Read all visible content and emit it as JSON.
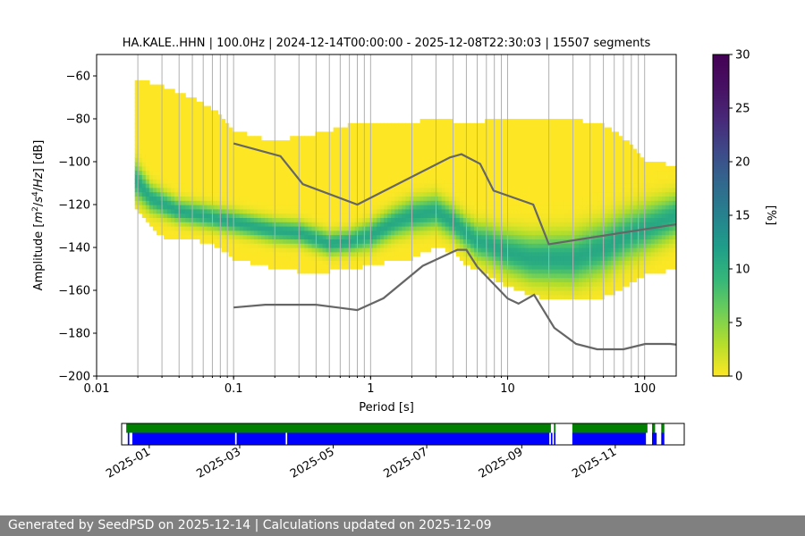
{
  "chart_data": [
    {
      "type": "heatmap",
      "title": "HA.KALE..HHN | 100.0Hz | 2024-12-14T00:00:00 - 2025-12-08T22:30:03 | 15507 segments",
      "xlabel": "Period [s]",
      "ylabel_parts": [
        "Amplitude [",
        "m",
        "2",
        "/",
        "s",
        "4",
        "/",
        "Hz",
        "] [dB]"
      ],
      "x_scale": "log",
      "xlim": [
        0.01,
        170
      ],
      "ylim": [
        -200,
        -50
      ],
      "x_ticks": [
        {
          "value": 0.01,
          "label": "0.01"
        },
        {
          "value": 0.1,
          "label": "0.1"
        },
        {
          "value": 1,
          "label": "1"
        },
        {
          "value": 10,
          "label": "10"
        },
        {
          "value": 100,
          "label": "100"
        }
      ],
      "y_ticks": [
        {
          "value": -60,
          "label": "−60"
        },
        {
          "value": -80,
          "label": "−80"
        },
        {
          "value": -100,
          "label": "−100"
        },
        {
          "value": -120,
          "label": "−120"
        },
        {
          "value": -140,
          "label": "−140"
        },
        {
          "value": -160,
          "label": "−160"
        },
        {
          "value": -180,
          "label": "−180"
        },
        {
          "value": -200,
          "label": "−200"
        }
      ],
      "grid_periods": [
        0.02,
        0.03,
        0.04,
        0.05,
        0.06,
        0.07,
        0.08,
        0.09,
        0.1,
        0.2,
        0.3,
        0.4,
        0.5,
        0.6,
        0.7,
        0.8,
        0.9,
        1,
        2,
        3,
        4,
        5,
        6,
        7,
        8,
        9,
        10,
        20,
        30,
        40,
        50,
        60,
        70,
        80,
        90,
        100
      ],
      "density_envelope": {
        "period": [
          0.019,
          0.03,
          0.05,
          0.08,
          0.1,
          0.2,
          0.3,
          0.5,
          0.8,
          1,
          2,
          3,
          4,
          5,
          7,
          10,
          15,
          20,
          30,
          50,
          70,
          100,
          170
        ],
        "upper_db": [
          -62,
          -66,
          -71,
          -79,
          -86,
          -92,
          -89,
          -87,
          -82,
          -83,
          -83,
          -80,
          -82,
          -82,
          -82,
          -80,
          -80,
          -80,
          -81,
          -84,
          -90,
          -100,
          -103
        ],
        "lower_db": [
          -123,
          -136,
          -137,
          -141,
          -146,
          -151,
          -152,
          -152,
          -151,
          -149,
          -146,
          -141,
          -143,
          -149,
          -153,
          -159,
          -163,
          -166,
          -165,
          -164,
          -160,
          -154,
          -151
        ]
      },
      "mode_curve": {
        "period": [
          0.019,
          0.025,
          0.04,
          0.06,
          0.1,
          0.2,
          0.3,
          0.5,
          0.7,
          1,
          1.5,
          2,
          3,
          4,
          5,
          6,
          7,
          10,
          15,
          20,
          30,
          50,
          70,
          100,
          170
        ],
        "db": [
          -108,
          -117,
          -123,
          -125,
          -128,
          -132,
          -133,
          -138,
          -137,
          -134,
          -128,
          -125,
          -123,
          -128,
          -133,
          -137,
          -138,
          -142,
          -145,
          -145,
          -145,
          -140,
          -135,
          -131,
          -125
        ],
        "width_db": [
          16,
          12,
          10,
          10,
          10,
          10,
          10,
          10,
          10,
          12,
          13,
          14,
          14,
          14,
          14,
          15,
          16,
          18,
          20,
          21,
          22,
          22,
          21,
          20,
          18
        ]
      },
      "nhnm": {
        "period": [
          0.1,
          0.22,
          0.32,
          0.8,
          3.8,
          4.6,
          6.3,
          7.9,
          15.4,
          20,
          354.8
        ],
        "db": [
          -91.5,
          -97.4,
          -110.5,
          -120,
          -98,
          -96.5,
          -101,
          -113.5,
          -120,
          -138.5,
          -126
        ]
      },
      "nlnm": {
        "period": [
          0.1,
          0.17,
          0.4,
          0.8,
          1.24,
          2.4,
          4.3,
          5,
          6,
          10,
          12,
          15.6,
          21.9,
          31.6,
          45,
          70,
          101,
          154,
          328
        ],
        "db": [
          -168,
          -166.7,
          -166.7,
          -169.2,
          -163.7,
          -148.6,
          -141.1,
          -141.1,
          -149,
          -163.8,
          -166.2,
          -162.1,
          -177.5,
          -185,
          -187.5,
          -187.5,
          -185,
          -185,
          -187.5
        ]
      },
      "colorbar": {
        "label": "[%]",
        "min": 0,
        "max": 30,
        "ticks": [
          {
            "value": 0,
            "label": "0"
          },
          {
            "value": 5,
            "label": "5"
          },
          {
            "value": 10,
            "label": "10"
          },
          {
            "value": 15,
            "label": "15"
          },
          {
            "value": 20,
            "label": "20"
          },
          {
            "value": 25,
            "label": "25"
          },
          {
            "value": 30,
            "label": "30"
          }
        ],
        "colormap": "viridis_r"
      },
      "colors": {
        "noise_models": "#666666",
        "grid": "#b0b0b0"
      }
    },
    {
      "type": "timeline",
      "date_range": [
        "2024-12-14",
        "2025-12-16"
      ],
      "x_ticks": [
        {
          "value": "2025-01-01",
          "label": "2025-01"
        },
        {
          "value": "2025-03-01",
          "label": "2025-03"
        },
        {
          "value": "2025-05-01",
          "label": "2025-05"
        },
        {
          "value": "2025-07-01",
          "label": "2025-07"
        },
        {
          "value": "2025-09-01",
          "label": "2025-09"
        },
        {
          "value": "2025-11-01",
          "label": "2025-11"
        }
      ],
      "colors": {
        "green": "#008000",
        "blue": "#0000ff"
      },
      "green_intervals": [
        [
          "2024-12-17",
          "2025-09-20"
        ],
        [
          "2025-09-22",
          "2025-09-23"
        ],
        [
          "2025-10-04",
          "2025-11-22"
        ],
        [
          "2025-11-25",
          "2025-11-27"
        ],
        [
          "2025-12-01",
          "2025-12-03"
        ]
      ],
      "blue_intervals": [
        [
          "2024-12-18",
          "2024-12-19"
        ],
        [
          "2024-12-21",
          "2025-02-26"
        ],
        [
          "2025-02-27",
          "2025-03-31"
        ],
        [
          "2025-04-01",
          "2025-09-19"
        ],
        [
          "2025-09-20",
          "2025-09-21"
        ],
        [
          "2025-09-22",
          "2025-09-23"
        ],
        [
          "2025-10-04",
          "2025-11-21"
        ],
        [
          "2025-11-25",
          "2025-11-28"
        ],
        [
          "2025-12-01",
          "2025-12-03"
        ]
      ]
    }
  ],
  "footer": {
    "text": "Generated by SeedPSD on 2025-12-14 | Calculations updated on 2025-12-09"
  }
}
